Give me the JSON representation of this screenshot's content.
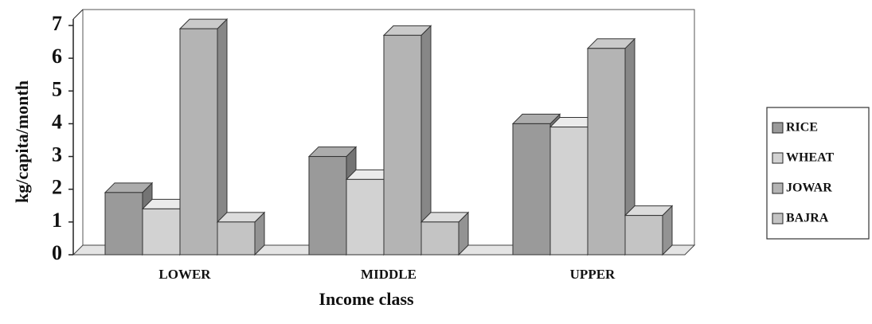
{
  "chart_data": {
    "type": "bar3d",
    "x_label": "Income class",
    "y_label": "kg/capita/month",
    "categories": [
      "LOWER",
      "MIDDLE",
      "UPPER"
    ],
    "series": [
      {
        "name": "RICE",
        "color": "#9a9a9a",
        "values": [
          1.9,
          3.0,
          4.0
        ]
      },
      {
        "name": "WHEAT",
        "color": "#d2d2d2",
        "values": [
          1.4,
          2.3,
          3.9
        ]
      },
      {
        "name": "JOWAR",
        "color": "#b4b4b4",
        "values": [
          6.9,
          6.7,
          6.3
        ]
      },
      {
        "name": "BAJRA",
        "color": "#c4c4c4",
        "values": [
          1.0,
          1.0,
          1.2
        ]
      }
    ],
    "ylim": [
      0,
      7
    ],
    "yticks": [
      0,
      1,
      2,
      3,
      4,
      5,
      6,
      7
    ],
    "legend": "right"
  }
}
